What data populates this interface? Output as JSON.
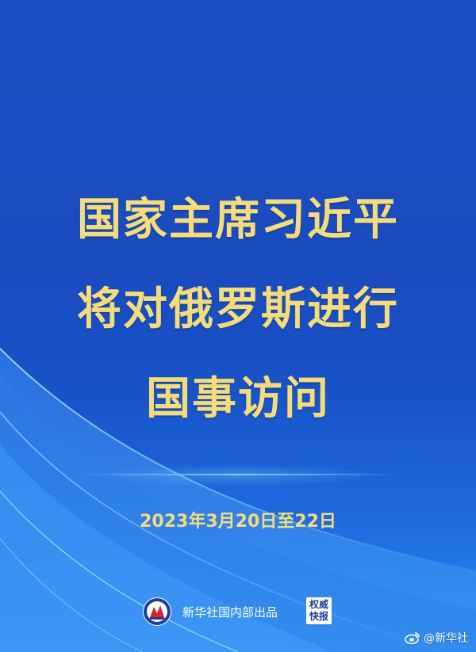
{
  "headline": {
    "line1": "国家主席习近平",
    "line2": "将对俄罗斯进行",
    "line3": "国事访问"
  },
  "date": "2023年3月20日至22日",
  "source": {
    "text": "新华社国内部出品",
    "stamp_line1": "权威",
    "stamp_line2": "快报"
  },
  "watermark": {
    "icon": "weibo-icon",
    "text": "@新华社"
  },
  "colors": {
    "background": "#1d4fc4",
    "headline": "#f5dc7a",
    "text": "#ffffff"
  }
}
